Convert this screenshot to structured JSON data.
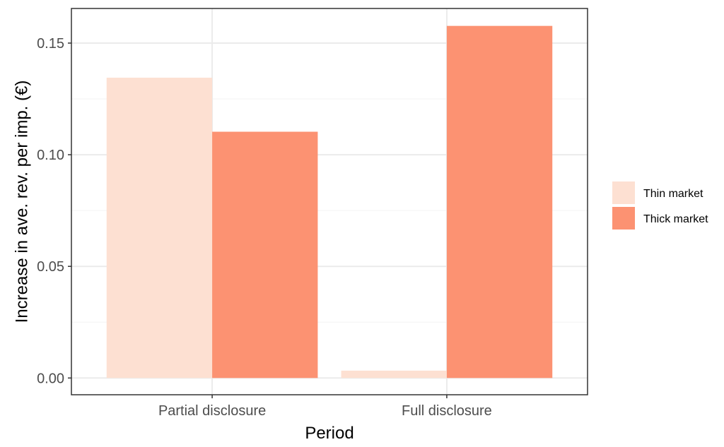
{
  "chart_data": {
    "type": "bar",
    "categories": [
      "Partial disclosure",
      "Full disclosure"
    ],
    "series": [
      {
        "name": "Thin market",
        "values": [
          0.1345,
          0.0033
        ],
        "color": "#fde0d2"
      },
      {
        "name": "Thick market",
        "values": [
          0.1103,
          0.1577
        ],
        "color": "#fc9272"
      }
    ],
    "xlabel": "Period",
    "ylabel": "Increase in ave. rev. per imp. (€)",
    "ylim": [
      -0.0075,
      0.1655
    ],
    "yticks": [
      0.0,
      0.05,
      0.1,
      0.15
    ],
    "ytick_labels": [
      "0.00",
      "0.05",
      "0.10",
      "0.15"
    ],
    "grid": true,
    "legend": "right",
    "theme": {
      "panel_border": "#333333",
      "grid_major": "#ebebeb",
      "grid_minor": "#f5f5f5"
    }
  }
}
